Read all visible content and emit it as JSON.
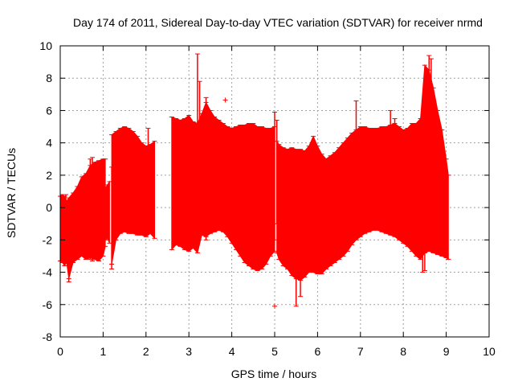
{
  "chart_data": {
    "type": "line",
    "title": "Day 174 of 2011, Sidereal Day-to-day VTEC variation (SDTVAR) for receiver nrmd",
    "xlabel": "GPS time / hours",
    "ylabel": "SDTVAR / TECUs",
    "xlim": [
      0,
      10
    ],
    "ylim": [
      -8,
      10
    ],
    "xticks": [
      0,
      1,
      2,
      3,
      4,
      5,
      6,
      7,
      8,
      9,
      10
    ],
    "yticks": [
      -8,
      -6,
      -4,
      -2,
      0,
      2,
      4,
      6,
      8,
      10
    ],
    "grid": true,
    "legend": "none",
    "series": [
      {
        "name": "SDTVAR",
        "color": "#ff0000",
        "style": "errorbars",
        "segments": [
          {
            "x": [
              0.0,
              0.05,
              0.1,
              0.15,
              0.2,
              0.3,
              0.4,
              0.5,
              0.6,
              0.7,
              0.8,
              0.9,
              1.0,
              1.05
            ],
            "ymin": [
              -3.3,
              -3.4,
              -3.6,
              -3.4,
              -4.4,
              -3.4,
              -3.2,
              -3.0,
              -3.2,
              -3.1,
              -3.2,
              -3.3,
              -3.0,
              -2.4
            ],
            "ymax": [
              0.7,
              0.8,
              0.7,
              0.4,
              0.6,
              0.9,
              1.3,
              1.9,
              2.1,
              2.6,
              2.8,
              2.9,
              3.0,
              3.0
            ]
          },
          {
            "x": [
              1.05,
              1.1,
              1.15
            ],
            "ymin": [
              -2.0,
              -1.9,
              -2.2
            ],
            "ymax": [
              1.2,
              1.4,
              1.6
            ]
          },
          {
            "x": [
              1.2,
              1.3,
              1.4,
              1.5,
              1.6,
              1.7,
              1.8,
              1.9,
              2.0,
              2.1,
              2.2
            ],
            "ymin": [
              -3.5,
              -2.0,
              -1.6,
              -1.5,
              -1.6,
              -1.6,
              -1.7,
              -1.7,
              -1.8,
              -1.6,
              -1.9
            ],
            "ymax": [
              4.5,
              4.7,
              4.9,
              5.0,
              4.9,
              4.7,
              4.4,
              4.0,
              3.8,
              3.9,
              4.1
            ]
          },
          {
            "x": [
              2.6,
              2.7,
              2.8,
              2.9,
              3.0,
              3.1,
              3.2,
              3.3,
              3.4,
              3.5,
              3.6,
              3.7,
              3.8,
              3.9,
              4.0,
              4.1,
              4.2,
              4.3,
              4.4,
              4.5,
              4.6,
              4.7,
              4.8,
              4.9,
              5.0
            ],
            "ymin": [
              -2.6,
              -2.3,
              -2.4,
              -2.6,
              -2.7,
              -2.5,
              -2.8,
              -1.7,
              -1.8,
              -1.6,
              -1.5,
              -1.4,
              -1.5,
              -1.8,
              -2.2,
              -2.6,
              -3.0,
              -3.4,
              -3.6,
              -3.8,
              -3.9,
              -3.8,
              -3.5,
              -3.0,
              -2.7
            ],
            "ymax": [
              5.6,
              5.5,
              5.4,
              5.5,
              5.7,
              5.3,
              5.2,
              5.8,
              6.5,
              6.0,
              5.6,
              5.4,
              5.2,
              5.0,
              4.9,
              5.0,
              5.1,
              5.1,
              5.2,
              5.2,
              5.0,
              5.0,
              4.9,
              4.9,
              5.0
            ]
          },
          {
            "x": [
              5.05,
              5.1,
              5.2,
              5.3,
              5.4,
              5.5,
              5.6,
              5.7,
              5.8,
              5.9,
              6.0,
              6.1,
              6.2,
              6.3,
              6.4,
              6.5,
              6.6,
              6.7,
              6.8,
              6.9,
              7.0,
              7.1,
              7.2,
              7.3,
              7.4,
              7.5,
              7.6,
              7.7,
              7.8,
              7.9,
              8.0,
              8.1,
              8.2,
              8.3,
              8.4,
              8.5,
              8.6,
              8.7,
              8.8,
              8.9,
              9.0,
              9.05
            ],
            "ymin": [
              -2.8,
              -3.2,
              -3.6,
              -3.8,
              -4.2,
              -4.4,
              -4.5,
              -4.3,
              -4.0,
              -4.0,
              -4.1,
              -4.1,
              -3.8,
              -3.6,
              -3.4,
              -3.2,
              -3.0,
              -2.7,
              -2.3,
              -2.0,
              -1.8,
              -1.6,
              -1.5,
              -1.4,
              -1.4,
              -1.5,
              -1.6,
              -1.7,
              -1.8,
              -2.0,
              -2.2,
              -2.4,
              -2.7,
              -3.0,
              -3.2,
              -2.8,
              -2.7,
              -2.8,
              -2.9,
              -3.0,
              -3.1,
              -3.2
            ],
            "ymax": [
              4.1,
              3.9,
              3.7,
              3.6,
              3.7,
              3.6,
              3.6,
              3.5,
              3.8,
              4.4,
              3.8,
              3.3,
              3.0,
              3.2,
              3.4,
              3.7,
              4.0,
              4.3,
              4.6,
              4.8,
              5.0,
              5.0,
              4.9,
              4.9,
              4.9,
              5.0,
              5.0,
              5.1,
              5.2,
              5.0,
              4.8,
              4.9,
              5.2,
              5.2,
              5.5,
              8.8,
              8.5,
              7.4,
              6.0,
              4.8,
              3.0,
              2.0
            ]
          }
        ],
        "spikes": [
          {
            "x": 0.13,
            "ymin": -3.0,
            "ymax": 0.8
          },
          {
            "x": 0.2,
            "ymin": -4.6,
            "ymax": -2.0
          },
          {
            "x": 0.7,
            "ymin": -3.2,
            "ymax": 3.0
          },
          {
            "x": 0.75,
            "ymin": -3.3,
            "ymax": 3.1
          },
          {
            "x": 1.2,
            "ymin": -3.8,
            "ymax": 2.5
          },
          {
            "x": 2.05,
            "ymin": -1.6,
            "ymax": 4.9
          },
          {
            "x": 3.2,
            "ymin": 1.0,
            "ymax": 9.5
          },
          {
            "x": 3.25,
            "ymin": 1.5,
            "ymax": 7.8
          },
          {
            "x": 3.4,
            "ymin": -2.0,
            "ymax": 6.8
          },
          {
            "x": 5.0,
            "ymin": -2.0,
            "ymax": 5.9
          },
          {
            "x": 5.05,
            "ymin": -1.0,
            "ymax": 5.4
          },
          {
            "x": 5.5,
            "ymin": -6.1,
            "ymax": -2.0
          },
          {
            "x": 5.6,
            "ymin": -5.5,
            "ymax": -2.0
          },
          {
            "x": 6.9,
            "ymin": 1.0,
            "ymax": 6.6
          },
          {
            "x": 7.7,
            "ymin": 1.0,
            "ymax": 6.0
          },
          {
            "x": 7.8,
            "ymin": 2.0,
            "ymax": 5.5
          },
          {
            "x": 8.45,
            "ymin": -4.0,
            "ymax": 1.0
          },
          {
            "x": 8.5,
            "ymin": -3.9,
            "ymax": 6.5
          },
          {
            "x": 8.6,
            "ymin": 2.0,
            "ymax": 9.4
          },
          {
            "x": 8.65,
            "ymin": 2.0,
            "ymax": 9.2
          }
        ],
        "outliers": [
          {
            "x": 3.85,
            "y": 6.65
          },
          {
            "x": 5.0,
            "y": -6.1
          }
        ]
      }
    ]
  }
}
